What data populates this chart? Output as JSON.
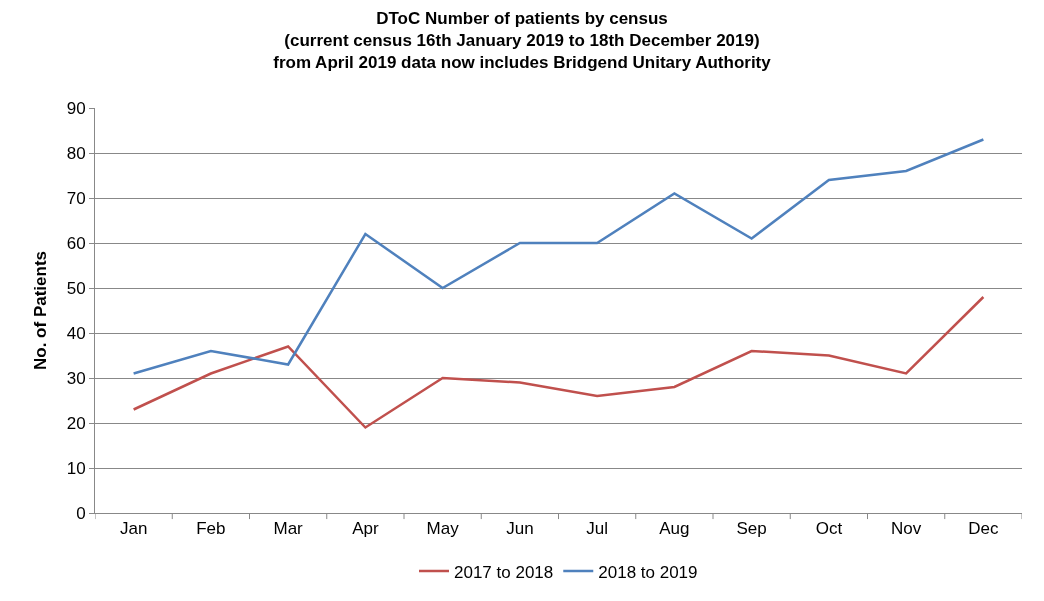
{
  "chart_data": {
    "type": "line",
    "title": "DToC Number of patients by census\n(current census 16th January 2019 to 18th December 2019)\nfrom April 2019 data now includes Bridgend Unitary Authority",
    "ylabel": "No. of Patients",
    "categories": [
      "Jan",
      "Feb",
      "Mar",
      "Apr",
      "May",
      "Jun",
      "Jul",
      "Aug",
      "Sep",
      "Oct",
      "Nov",
      "Dec"
    ],
    "series": [
      {
        "name": "2017 to 2018",
        "color": "#c0504d",
        "values": [
          23,
          31,
          37,
          19,
          30,
          29,
          26,
          28,
          36,
          35,
          31,
          48
        ]
      },
      {
        "name": "2018 to 2019",
        "color": "#4f81bd",
        "values": [
          31,
          36,
          33,
          62,
          50,
          60,
          60,
          71,
          61,
          74,
          76,
          83
        ]
      }
    ],
    "ylim": [
      0,
      90
    ],
    "yticks": [
      0,
      10,
      20,
      30,
      40,
      50,
      60,
      70,
      80,
      90
    ],
    "grid": "y",
    "legend": "bottom",
    "marker": "none",
    "line_style": "solid"
  }
}
